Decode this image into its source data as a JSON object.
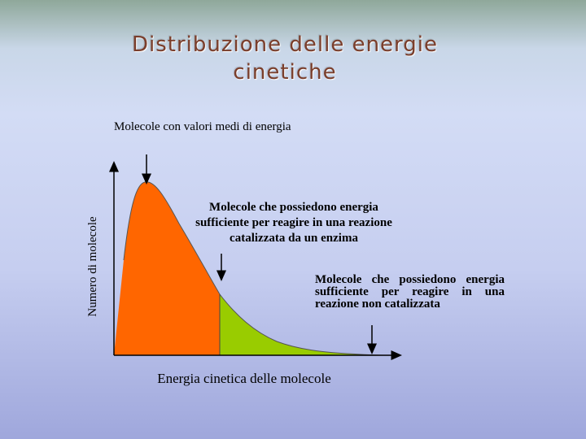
{
  "title": "Distribuzione delle energie cinetiche",
  "chart_data": {
    "type": "area",
    "xlabel": "Energia cinetica delle molecole",
    "ylabel": "Numero di molecole",
    "title": "Distribuzione delle energie cinetiche",
    "annotations": [
      "Molecole con valori medi di energia",
      "Molecole che possiedono energia sufficiente per reagire in una reazione catalizzata da un enzima",
      "Molecole che possiedono energia sufficiente per reagire in una reazione non catalizzata"
    ],
    "colors": {
      "below_threshold": "#ff6600",
      "above_threshold": "#99cc00"
    }
  }
}
